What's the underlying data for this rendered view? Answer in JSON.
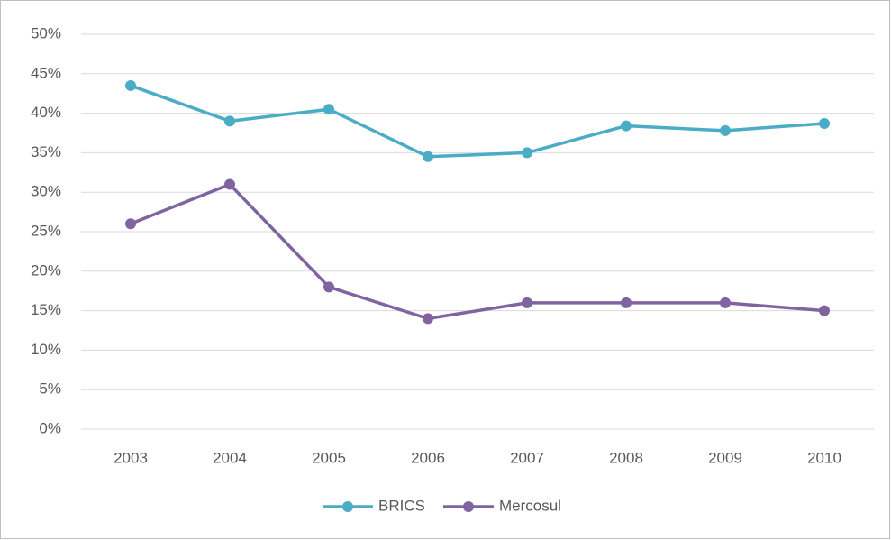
{
  "chart_data": {
    "type": "line",
    "categories": [
      "2003",
      "2004",
      "2005",
      "2006",
      "2007",
      "2008",
      "2009",
      "2010"
    ],
    "series": [
      {
        "name": "BRICS",
        "color": "#4bacc6",
        "values": [
          43.5,
          39,
          40.5,
          34.5,
          35,
          38.4,
          37.8,
          38.7
        ]
      },
      {
        "name": "Mercosul",
        "color": "#8064a2",
        "values": [
          26,
          31,
          18,
          14,
          16,
          16,
          16,
          15
        ]
      }
    ],
    "ylim": [
      0,
      50
    ],
    "yticks": [
      {
        "value": 0,
        "label": "0%"
      },
      {
        "value": 5,
        "label": "5%"
      },
      {
        "value": 10,
        "label": "10%"
      },
      {
        "value": 15,
        "label": "15%"
      },
      {
        "value": 20,
        "label": "20%"
      },
      {
        "value": 25,
        "label": "25%"
      },
      {
        "value": 30,
        "label": "30%"
      },
      {
        "value": 35,
        "label": "35%"
      },
      {
        "value": 40,
        "label": "40%"
      },
      {
        "value": 45,
        "label": "45%"
      },
      {
        "value": 50,
        "label": "50%"
      }
    ],
    "grid": true,
    "legend": "bottom"
  }
}
